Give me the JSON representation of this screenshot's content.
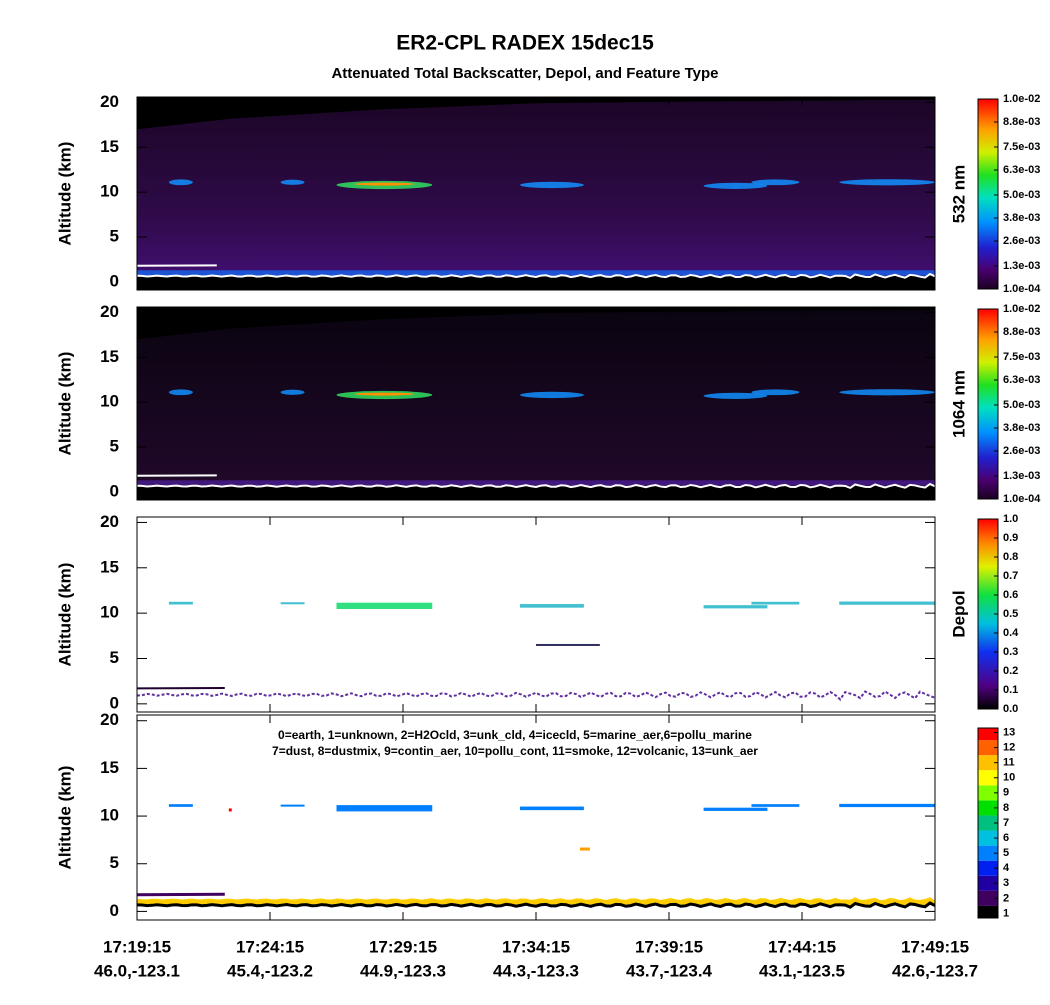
{
  "title": "ER2-CPL RADEX 15dec15",
  "subtitle": "Attenuated Total Backscatter, Depol, and Feature Type",
  "x_ticks": [
    {
      "time": "17:19:15",
      "location": "46.0,-123.1"
    },
    {
      "time": "17:24:15",
      "location": "45.4,-123.2"
    },
    {
      "time": "17:29:15",
      "location": "44.9,-123.3"
    },
    {
      "time": "17:34:15",
      "location": "44.3,-123.3"
    },
    {
      "time": "17:39:15",
      "location": "43.7,-123.4"
    },
    {
      "time": "17:44:15",
      "location": "43.1,-123.5"
    },
    {
      "time": "17:49:15",
      "location": "42.6,-123.7"
    }
  ],
  "chart_data": [
    {
      "type": "curtain",
      "scene": "backscatter532",
      "ylabel": "Altitude (km)",
      "ylim": [
        -0.9,
        20.6
      ],
      "yticks": [
        0,
        5,
        10,
        15,
        20
      ],
      "colorbar_label": "532 nm",
      "clim": [
        0.0001,
        0.01
      ],
      "colorbar_ticks": [
        {
          "value": 0.0001,
          "label": "1.0e-04"
        },
        {
          "value": 0.0013,
          "label": "1.3e-03"
        },
        {
          "value": 0.0026,
          "label": "2.6e-03"
        },
        {
          "value": 0.0038,
          "label": "3.8e-03"
        },
        {
          "value": 0.005,
          "label": "5.0e-03"
        },
        {
          "value": 0.0063,
          "label": "6.3e-03"
        },
        {
          "value": 0.0075,
          "label": "7.5e-03"
        },
        {
          "value": 0.0088,
          "label": "8.8e-03"
        },
        {
          "value": 0.01,
          "label": "1.0e-02"
        }
      ]
    },
    {
      "type": "curtain",
      "scene": "backscatter1064",
      "ylabel": "Altitude (km)",
      "ylim": [
        -0.9,
        20.6
      ],
      "yticks": [
        0,
        5,
        10,
        15,
        20
      ],
      "colorbar_label": "1064 nm",
      "clim": [
        0.0001,
        0.01
      ],
      "colorbar_ticks": [
        {
          "value": 0.0001,
          "label": "1.0e-04"
        },
        {
          "value": 0.0013,
          "label": "1.3e-03"
        },
        {
          "value": 0.0026,
          "label": "2.6e-03"
        },
        {
          "value": 0.0038,
          "label": "3.8e-03"
        },
        {
          "value": 0.005,
          "label": "5.0e-03"
        },
        {
          "value": 0.0063,
          "label": "6.3e-03"
        },
        {
          "value": 0.0075,
          "label": "7.5e-03"
        },
        {
          "value": 0.0088,
          "label": "8.8e-03"
        },
        {
          "value": 0.01,
          "label": "1.0e-02"
        }
      ]
    },
    {
      "type": "curtain",
      "scene": "depol",
      "ylabel": "Altitude (km)",
      "ylim": [
        -0.9,
        20.6
      ],
      "yticks": [
        0,
        5,
        10,
        15,
        20
      ],
      "colorbar_label": "Depol",
      "clim": [
        0,
        1
      ],
      "colorbar_ticks": [
        {
          "value": 0,
          "label": "0.0"
        },
        0.1,
        0.2,
        0.3,
        0.4,
        0.5,
        0.6,
        0.7,
        0.8,
        0.9,
        {
          "value": 1,
          "label": "1.0"
        }
      ]
    },
    {
      "type": "curtain",
      "scene": "feature",
      "ylabel": "Altitude (km)",
      "ylim": [
        -0.9,
        20.6
      ],
      "yticks": [
        0,
        5,
        10,
        15,
        20
      ],
      "annotations": [
        "0=earth, 1=unknown, 2=H2Ocld, 3=unk_cld, 4=icecld, 5=marine_aer,6=pollu_marine",
        "7=dust, 8=dustmix, 9=contin_aer, 10=pollu_cont, 11=smoke, 12=volcanic, 13=unk_aer"
      ],
      "clim": [
        0.7,
        13.3
      ],
      "discrete": true,
      "colorbar_ticks": [
        1,
        2,
        3,
        4,
        5,
        6,
        7,
        8,
        9,
        10,
        11,
        12,
        13
      ]
    }
  ]
}
